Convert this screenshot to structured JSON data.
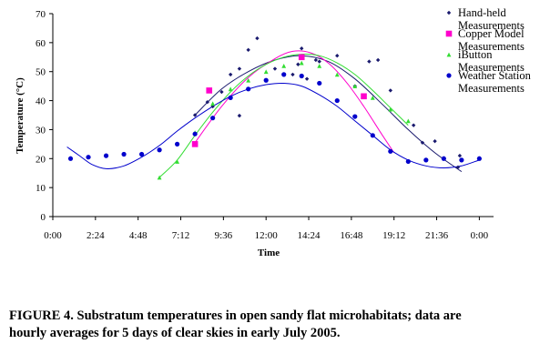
{
  "chart_data": {
    "type": "scatter",
    "title": "",
    "xlabel": "Time",
    "ylabel": "Temperature (°C)",
    "xlim": [
      0,
      24.8
    ],
    "ylim": [
      0,
      70
    ],
    "y_ticks": [
      0,
      10,
      20,
      30,
      40,
      50,
      60,
      70
    ],
    "x_ticks": [
      {
        "value": 0,
        "label": "0:00"
      },
      {
        "value": 2.4,
        "label": "2:24"
      },
      {
        "value": 4.8,
        "label": "4:48"
      },
      {
        "value": 7.2,
        "label": "7:12"
      },
      {
        "value": 9.6,
        "label": "9:36"
      },
      {
        "value": 12,
        "label": "12:00"
      },
      {
        "value": 14.4,
        "label": "14:24"
      },
      {
        "value": 16.8,
        "label": "16:48"
      },
      {
        "value": 19.2,
        "label": "19:12"
      },
      {
        "value": 21.6,
        "label": "21:36"
      },
      {
        "value": 24,
        "label": "0:00"
      }
    ],
    "grid": false,
    "legend_position": "right",
    "series": [
      {
        "name": "Hand-held Measurements",
        "color": "#1a1a6e",
        "marker": "diamond",
        "points": [
          [
            8.0,
            35
          ],
          [
            8.7,
            39.5
          ],
          [
            9.0,
            38
          ],
          [
            9.5,
            43
          ],
          [
            10.0,
            49
          ],
          [
            10.5,
            51
          ],
          [
            10.5,
            34.8
          ],
          [
            11.0,
            57.5
          ],
          [
            11.5,
            61.5
          ],
          [
            12.5,
            51
          ],
          [
            13.5,
            49
          ],
          [
            13.8,
            52.5
          ],
          [
            14.0,
            58
          ],
          [
            14.3,
            47.5
          ],
          [
            14.8,
            54
          ],
          [
            15.0,
            53.5
          ],
          [
            16.0,
            55.5
          ],
          [
            17.0,
            45
          ],
          [
            17.8,
            53.5
          ],
          [
            18.3,
            54
          ],
          [
            19.0,
            43.5
          ],
          [
            20.3,
            31.5
          ],
          [
            20.8,
            25.5
          ],
          [
            21.5,
            26
          ],
          [
            22.8,
            17
          ],
          [
            22.9,
            21
          ]
        ],
        "trend": [
          [
            8.0,
            35
          ],
          [
            9.5,
            44
          ],
          [
            11.0,
            50
          ],
          [
            12.5,
            54
          ],
          [
            14.0,
            55.5
          ],
          [
            15.5,
            53.5
          ],
          [
            17.0,
            47.5
          ],
          [
            18.5,
            39
          ],
          [
            20.0,
            30
          ],
          [
            21.5,
            22
          ],
          [
            23.0,
            15.5
          ]
        ]
      },
      {
        "name": "Copper Model Measurements",
        "color": "#ff00cc",
        "marker": "square",
        "points": [
          [
            8.0,
            25
          ],
          [
            8.8,
            43.5
          ],
          [
            14.0,
            55
          ],
          [
            17.5,
            41.5
          ]
        ],
        "trend": [
          [
            8.0,
            25.5
          ],
          [
            9.5,
            38
          ],
          [
            11.0,
            48
          ],
          [
            12.5,
            54.5
          ],
          [
            13.5,
            57
          ],
          [
            14.5,
            56.5
          ],
          [
            15.5,
            53
          ],
          [
            16.5,
            46.5
          ],
          [
            17.5,
            38
          ],
          [
            18.5,
            28.5
          ],
          [
            19.2,
            22
          ]
        ]
      },
      {
        "name": "iButton Measurements",
        "color": "#33dd33",
        "marker": "triangle",
        "points": [
          [
            6.0,
            13.5
          ],
          [
            7.0,
            19
          ],
          [
            8.0,
            29
          ],
          [
            9.0,
            39
          ],
          [
            10.0,
            44
          ],
          [
            11.0,
            47
          ],
          [
            12.0,
            50
          ],
          [
            13.0,
            52
          ],
          [
            14.0,
            53
          ],
          [
            15.0,
            52
          ],
          [
            16.0,
            49
          ],
          [
            17.0,
            45
          ],
          [
            18.0,
            41
          ],
          [
            19.0,
            37
          ],
          [
            20.0,
            33
          ]
        ],
        "trend": [
          [
            6.0,
            13.5
          ],
          [
            7.0,
            19.5
          ],
          [
            8.0,
            28
          ],
          [
            9.0,
            36
          ],
          [
            10.0,
            43
          ],
          [
            11.0,
            48.5
          ],
          [
            12.0,
            52.5
          ],
          [
            13.0,
            55
          ],
          [
            14.0,
            56
          ],
          [
            15.0,
            55.5
          ],
          [
            16.0,
            53
          ],
          [
            17.0,
            49
          ],
          [
            18.0,
            43.5
          ],
          [
            19.0,
            37.5
          ],
          [
            20.0,
            31.5
          ]
        ]
      },
      {
        "name": "Weather Station Measurements",
        "color": "#0000cc",
        "marker": "circle",
        "points": [
          [
            1.0,
            20
          ],
          [
            2.0,
            20.5
          ],
          [
            3.0,
            21
          ],
          [
            4.0,
            21.5
          ],
          [
            5.0,
            21.5
          ],
          [
            6.0,
            23
          ],
          [
            7.0,
            25
          ],
          [
            8.0,
            28.5
          ],
          [
            9.0,
            34
          ],
          [
            10.0,
            41
          ],
          [
            11.0,
            44
          ],
          [
            12.0,
            47
          ],
          [
            13.0,
            49
          ],
          [
            14.0,
            48.5
          ],
          [
            15.0,
            46
          ],
          [
            16.0,
            40
          ],
          [
            17.0,
            34.5
          ],
          [
            18.0,
            28
          ],
          [
            19.0,
            22.5
          ],
          [
            20.0,
            19
          ],
          [
            21.0,
            19.5
          ],
          [
            22.0,
            20
          ],
          [
            23.0,
            19.5
          ],
          [
            24.0,
            20
          ]
        ],
        "trend": [
          [
            0.8,
            24
          ],
          [
            1.5,
            21
          ],
          [
            2.2,
            18
          ],
          [
            3.0,
            16.5
          ],
          [
            4.0,
            17.5
          ],
          [
            5.0,
            20.5
          ],
          [
            6.0,
            24.5
          ],
          [
            7.0,
            29.5
          ],
          [
            8.0,
            34
          ],
          [
            9.0,
            38
          ],
          [
            10.0,
            41.5
          ],
          [
            11.0,
            44
          ],
          [
            12.0,
            45.5
          ],
          [
            13.0,
            46
          ],
          [
            14.0,
            45
          ],
          [
            15.0,
            42
          ],
          [
            16.0,
            38
          ],
          [
            17.0,
            33
          ],
          [
            18.0,
            28
          ],
          [
            19.0,
            23
          ],
          [
            20.0,
            19.5
          ],
          [
            21.0,
            17.5
          ],
          [
            22.0,
            16.8
          ],
          [
            23.0,
            17.5
          ],
          [
            24.0,
            19.5
          ]
        ]
      }
    ]
  },
  "legend": {
    "items": [
      {
        "line1": "Hand-held",
        "line2": "Measurements"
      },
      {
        "line1": "Copper Model",
        "line2": "Measurements"
      },
      {
        "line1": "iButton",
        "line2": "Measurements"
      },
      {
        "line1": "Weather Station",
        "line2": "Measurements"
      }
    ]
  },
  "caption": {
    "line1": "FIGURE 4.  Substratum temperatures in open sandy flat microhabitats; data are",
    "line2": "hourly averages for 5 days of clear skies in early July 2005."
  }
}
